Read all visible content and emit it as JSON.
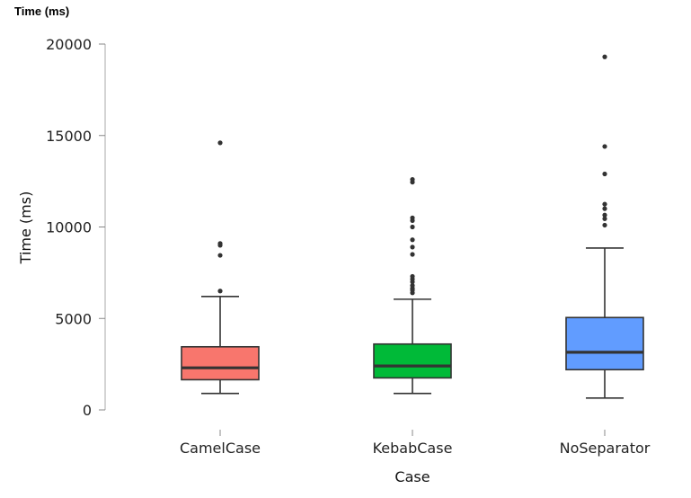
{
  "header": {
    "title": "Time (ms)"
  },
  "chart_data": {
    "type": "boxplot",
    "title": "Time (ms)",
    "xlabel": "Case",
    "ylabel": "Time (ms)",
    "ylim": [
      0,
      20000
    ],
    "yticks": [
      0,
      5000,
      10000,
      15000,
      20000
    ],
    "ytick_labels": [
      "0",
      "5000",
      "10000",
      "15000",
      "20000"
    ],
    "grid": false,
    "categories": [
      "CamelCase",
      "KebabCase",
      "NoSeparator"
    ],
    "series": [
      {
        "category": "CamelCase",
        "color": "#F8766D",
        "whisker_low": 900,
        "q1": 1650,
        "median": 2300,
        "q3": 3450,
        "whisker_high": 6200,
        "outliers": [
          6500,
          8450,
          9000,
          9100,
          14600
        ]
      },
      {
        "category": "KebabCase",
        "color": "#00BA38",
        "whisker_low": 900,
        "q1": 1750,
        "median": 2400,
        "q3": 3600,
        "whisker_high": 6050,
        "outliers": [
          6400,
          6550,
          6650,
          6800,
          7000,
          7150,
          7300,
          8500,
          8900,
          9300,
          10000,
          10350,
          10500,
          12450,
          12600
        ]
      },
      {
        "category": "NoSeparator",
        "color": "#619CFF",
        "whisker_low": 650,
        "q1": 2200,
        "median": 3150,
        "q3": 5050,
        "whisker_high": 8850,
        "outliers": [
          10100,
          10450,
          10650,
          11000,
          11250,
          12900,
          14400,
          19300
        ]
      }
    ]
  }
}
